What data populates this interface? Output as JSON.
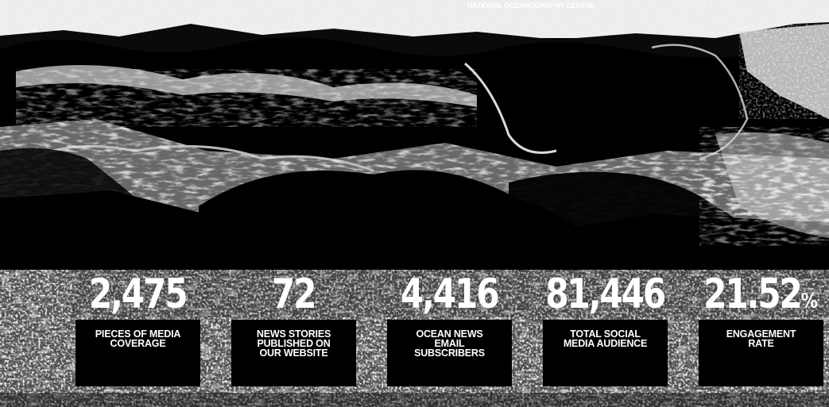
{
  "header": {
    "organisation": "NATIONAL OCEANOGRAPHY CENTRE"
  },
  "background": {
    "icon": "ocean-rocks-photo"
  },
  "stats": [
    {
      "value": "2,475",
      "unit": "",
      "label": "PIECES OF MEDIA\nCOVERAGE"
    },
    {
      "value": "72",
      "unit": "",
      "label": "NEWS STORIES\nPUBLISHED ON\nOUR WEBSITE"
    },
    {
      "value": "4,416",
      "unit": "",
      "label": "OCEAN NEWS\nEMAIL\nSUBSCRIBERS"
    },
    {
      "value": "81,446",
      "unit": "",
      "label": "TOTAL SOCIAL\nMEDIA AUDIENCE"
    },
    {
      "value": "21.52",
      "unit": "%",
      "label": "ENGAGEMENT\nRATE"
    }
  ]
}
